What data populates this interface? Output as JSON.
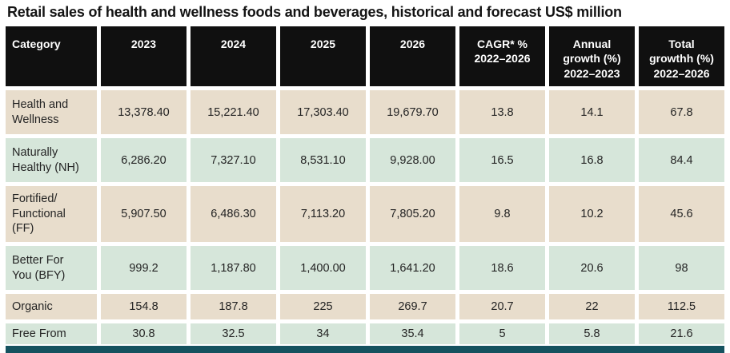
{
  "title": "Retail sales of health and wellness foods and beverages, historical and forecast US$ million",
  "colors": {
    "header_bg": "#101010",
    "row_beige": "#e8ddcc",
    "row_green": "#d6e6da",
    "footer_bar": "#15525f"
  },
  "chart_data": {
    "type": "table",
    "title": "Retail sales of health and wellness foods and beverages, historical and forecast US$ million",
    "columns": [
      "Category",
      "2023",
      "2024",
      "2025",
      "2026",
      "CAGR* %\n2022–2026",
      "Annual\ngrowth (%)\n2022–2023",
      "Total\ngrowthh (%)\n2022–2026"
    ],
    "rows": [
      {
        "category": "Health and\nWellness",
        "values": [
          "13,378.40",
          "15,221.40",
          "17,303.40",
          "19,679.70",
          "13.8",
          "14.1",
          "67.8"
        ]
      },
      {
        "category": "Naturally\nHealthy (NH)",
        "values": [
          "6,286.20",
          "7,327.10",
          "8,531.10",
          "9,928.00",
          "16.5",
          "16.8",
          "84.4"
        ]
      },
      {
        "category": "Fortified/\nFunctional\n(FF)",
        "values": [
          "5,907.50",
          "6,486.30",
          "7,113.20",
          "7,805.20",
          "9.8",
          "10.2",
          "45.6"
        ]
      },
      {
        "category": "Better For\nYou (BFY)",
        "values": [
          "999.2",
          "1,187.80",
          "1,400.00",
          "1,641.20",
          "18.6",
          "20.6",
          "98"
        ]
      },
      {
        "category": "Organic",
        "values": [
          "154.8",
          "187.8",
          "225",
          "269.7",
          "20.7",
          "22",
          "112.5"
        ]
      },
      {
        "category": "Free From",
        "values": [
          "30.8",
          "32.5",
          "34",
          "35.4",
          "5",
          "5.8",
          "21.6"
        ]
      }
    ]
  }
}
